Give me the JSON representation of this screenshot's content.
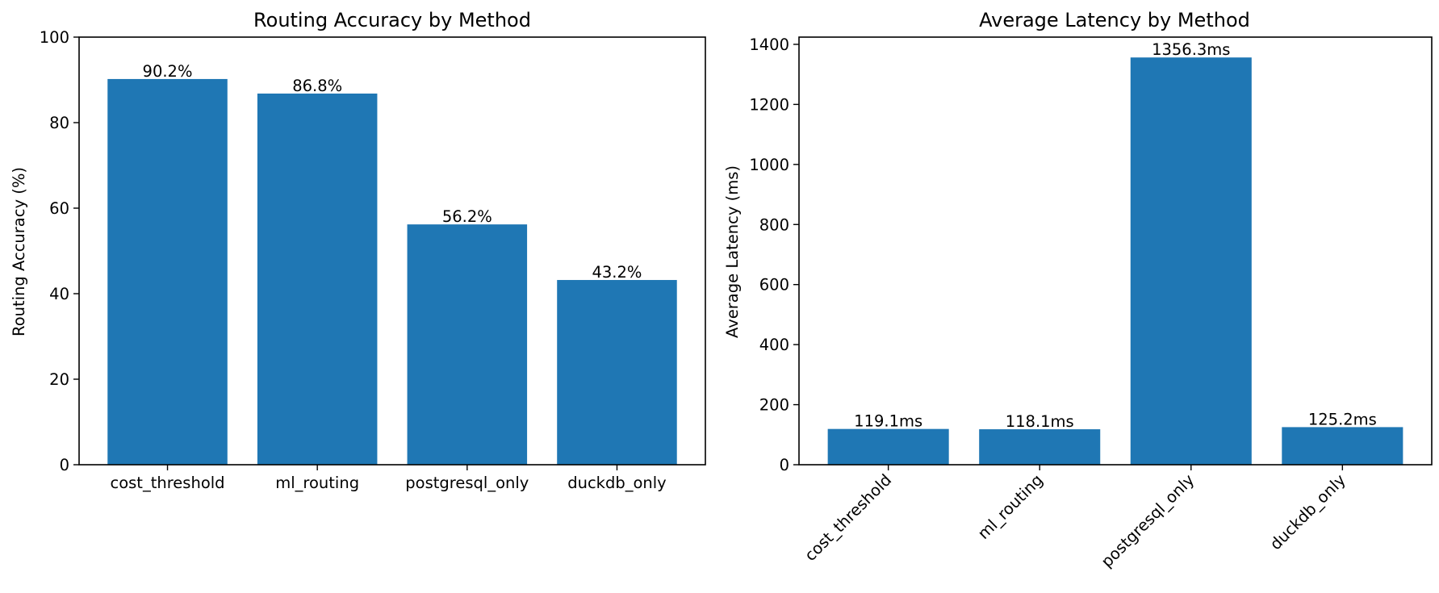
{
  "chart_data": [
    {
      "type": "bar",
      "title": "Routing Accuracy by Method",
      "xlabel": "",
      "ylabel": "Routing Accuracy (%)",
      "categories": [
        "cost_threshold",
        "ml_routing",
        "postgresql_only",
        "duckdb_only"
      ],
      "values": [
        90.2,
        86.8,
        56.2,
        43.2
      ],
      "data_labels": [
        "90.2%",
        "86.8%",
        "56.2%",
        "43.2%"
      ],
      "ylim": [
        0,
        100
      ],
      "yticks": [
        0,
        20,
        40,
        60,
        80,
        100
      ],
      "xtick_rotation": 0,
      "grid": false,
      "bar_color": "#1f77b4"
    },
    {
      "type": "bar",
      "title": "Average Latency by Method",
      "xlabel": "",
      "ylabel": "Average Latency (ms)",
      "categories": [
        "cost_threshold",
        "ml_routing",
        "postgresql_only",
        "duckdb_only"
      ],
      "values": [
        119.1,
        118.1,
        1356.3,
        125.2
      ],
      "data_labels": [
        "119.1ms",
        "118.1ms",
        "1356.3ms",
        "125.2ms"
      ],
      "ylim": [
        0,
        1424.1
      ],
      "yticks": [
        0,
        200,
        400,
        600,
        800,
        1000,
        1200,
        1400
      ],
      "xtick_rotation": -45,
      "grid": false,
      "bar_color": "#1f77b4"
    }
  ]
}
